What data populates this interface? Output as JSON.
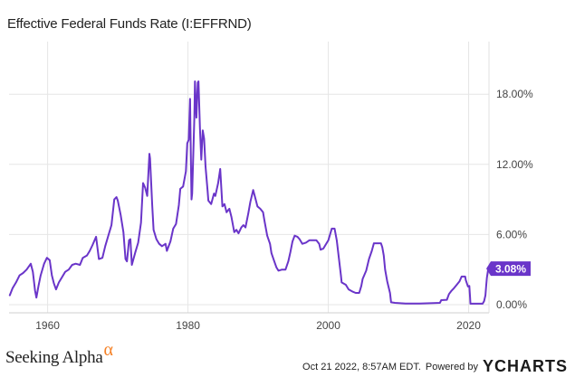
{
  "header": {
    "title": "Effective Federal Funds Rate (I:EFFRND)"
  },
  "footer": {
    "brand": "Seeking Alpha",
    "brand_symbol": "α",
    "timestamp": "Oct 21 2022, 8:57AM EDT.",
    "powered_by": "Powered by",
    "provider_logo_mark": "Y",
    "provider_logo_text": "CHARTS"
  },
  "colors": {
    "line": "#6a35c9",
    "grid": "#e6e6e6",
    "label_bg": "#6a35c9",
    "alpha": "#f58025"
  },
  "chart_data": {
    "type": "line",
    "title": "Effective Federal Funds Rate (I:EFFRND)",
    "xlim": [
      1954.5,
      2022.9
    ],
    "ylim": [
      -0.7,
      22.5
    ],
    "x_ticks": [
      1960,
      1980,
      2000,
      2020
    ],
    "x_tick_labels": [
      "1960",
      "1980",
      "2000",
      "2020"
    ],
    "y_ticks": [
      0,
      6,
      12,
      18
    ],
    "y_tick_labels": [
      "0.00%",
      "6.00%",
      "12.00%",
      "18.00%"
    ],
    "grid": true,
    "last_value_label": "3.08%",
    "last_value": 3.08,
    "series": [
      {
        "values": [
          [
            1954.6,
            0.8
          ],
          [
            1955.0,
            1.4
          ],
          [
            1955.5,
            1.9
          ],
          [
            1956.0,
            2.5
          ],
          [
            1956.5,
            2.7
          ],
          [
            1957.0,
            3.0
          ],
          [
            1957.6,
            3.5
          ],
          [
            1957.9,
            2.8
          ],
          [
            1958.2,
            1.2
          ],
          [
            1958.4,
            0.6
          ],
          [
            1958.7,
            1.6
          ],
          [
            1959.0,
            2.5
          ],
          [
            1959.5,
            3.5
          ],
          [
            1959.9,
            4.0
          ],
          [
            1960.3,
            3.8
          ],
          [
            1960.6,
            2.5
          ],
          [
            1960.9,
            1.8
          ],
          [
            1961.2,
            1.3
          ],
          [
            1961.6,
            1.9
          ],
          [
            1962.0,
            2.3
          ],
          [
            1962.5,
            2.8
          ],
          [
            1963.0,
            3.0
          ],
          [
            1963.5,
            3.4
          ],
          [
            1964.0,
            3.5
          ],
          [
            1964.6,
            3.4
          ],
          [
            1965.0,
            4.0
          ],
          [
            1965.6,
            4.2
          ],
          [
            1966.0,
            4.6
          ],
          [
            1966.4,
            5.1
          ],
          [
            1966.9,
            5.8
          ],
          [
            1967.3,
            3.9
          ],
          [
            1967.8,
            4.0
          ],
          [
            1968.2,
            5.0
          ],
          [
            1968.7,
            6.0
          ],
          [
            1969.1,
            6.8
          ],
          [
            1969.5,
            9.0
          ],
          [
            1969.8,
            9.2
          ],
          [
            1970.0,
            8.9
          ],
          [
            1970.4,
            7.7
          ],
          [
            1970.8,
            6.2
          ],
          [
            1971.1,
            3.9
          ],
          [
            1971.3,
            3.7
          ],
          [
            1971.6,
            5.5
          ],
          [
            1971.8,
            5.6
          ],
          [
            1972.0,
            3.4
          ],
          [
            1972.5,
            4.5
          ],
          [
            1972.9,
            5.3
          ],
          [
            1973.3,
            7.0
          ],
          [
            1973.6,
            10.4
          ],
          [
            1973.9,
            10.0
          ],
          [
            1974.2,
            9.3
          ],
          [
            1974.5,
            12.9
          ],
          [
            1974.6,
            12.5
          ],
          [
            1974.9,
            8.5
          ],
          [
            1975.1,
            6.4
          ],
          [
            1975.5,
            5.6
          ],
          [
            1975.9,
            5.2
          ],
          [
            1976.3,
            5.0
          ],
          [
            1976.8,
            5.2
          ],
          [
            1977.0,
            4.6
          ],
          [
            1977.5,
            5.4
          ],
          [
            1977.9,
            6.5
          ],
          [
            1978.3,
            6.9
          ],
          [
            1978.7,
            8.5
          ],
          [
            1978.9,
            9.9
          ],
          [
            1979.3,
            10.1
          ],
          [
            1979.7,
            11.4
          ],
          [
            1979.9,
            13.8
          ],
          [
            1980.1,
            14.1
          ],
          [
            1980.3,
            17.6
          ],
          [
            1980.4,
            13.0
          ],
          [
            1980.5,
            9.0
          ],
          [
            1980.6,
            9.5
          ],
          [
            1980.9,
            15.9
          ],
          [
            1981.0,
            19.1
          ],
          [
            1981.2,
            16.0
          ],
          [
            1981.4,
            19.0
          ],
          [
            1981.5,
            19.1
          ],
          [
            1981.7,
            15.1
          ],
          [
            1981.9,
            12.4
          ],
          [
            1982.1,
            14.9
          ],
          [
            1982.3,
            14.2
          ],
          [
            1982.5,
            11.8
          ],
          [
            1982.8,
            9.7
          ],
          [
            1982.9,
            8.9
          ],
          [
            1983.3,
            8.6
          ],
          [
            1983.7,
            9.5
          ],
          [
            1983.9,
            9.3
          ],
          [
            1984.3,
            10.4
          ],
          [
            1984.6,
            11.6
          ],
          [
            1984.9,
            8.4
          ],
          [
            1985.2,
            8.6
          ],
          [
            1985.5,
            7.9
          ],
          [
            1985.9,
            8.2
          ],
          [
            1986.2,
            7.5
          ],
          [
            1986.6,
            6.2
          ],
          [
            1986.9,
            6.4
          ],
          [
            1987.2,
            6.1
          ],
          [
            1987.6,
            6.6
          ],
          [
            1987.9,
            6.8
          ],
          [
            1988.2,
            6.6
          ],
          [
            1988.6,
            7.8
          ],
          [
            1988.9,
            8.8
          ],
          [
            1989.3,
            9.8
          ],
          [
            1989.6,
            9.1
          ],
          [
            1989.9,
            8.4
          ],
          [
            1990.3,
            8.2
          ],
          [
            1990.7,
            7.9
          ],
          [
            1990.9,
            7.2
          ],
          [
            1991.3,
            5.9
          ],
          [
            1991.7,
            5.2
          ],
          [
            1991.9,
            4.4
          ],
          [
            1992.3,
            3.7
          ],
          [
            1992.6,
            3.2
          ],
          [
            1992.9,
            2.9
          ],
          [
            1993.4,
            3.0
          ],
          [
            1993.9,
            3.0
          ],
          [
            1994.3,
            3.7
          ],
          [
            1994.6,
            4.5
          ],
          [
            1994.9,
            5.4
          ],
          [
            1995.2,
            5.9
          ],
          [
            1995.6,
            5.8
          ],
          [
            1995.9,
            5.6
          ],
          [
            1996.3,
            5.2
          ],
          [
            1996.8,
            5.3
          ],
          [
            1997.3,
            5.5
          ],
          [
            1997.8,
            5.5
          ],
          [
            1998.3,
            5.5
          ],
          [
            1998.7,
            5.2
          ],
          [
            1998.9,
            4.7
          ],
          [
            1999.3,
            4.8
          ],
          [
            1999.7,
            5.2
          ],
          [
            2000.0,
            5.5
          ],
          [
            2000.5,
            6.5
          ],
          [
            2000.9,
            6.5
          ],
          [
            2001.2,
            5.5
          ],
          [
            2001.5,
            4.0
          ],
          [
            2001.8,
            2.5
          ],
          [
            2001.9,
            1.9
          ],
          [
            2002.5,
            1.7
          ],
          [
            2002.9,
            1.3
          ],
          [
            2003.5,
            1.1
          ],
          [
            2003.9,
            1.0
          ],
          [
            2004.4,
            1.0
          ],
          [
            2004.7,
            1.6
          ],
          [
            2004.9,
            2.2
          ],
          [
            2005.4,
            2.9
          ],
          [
            2005.8,
            3.9
          ],
          [
            2006.2,
            4.6
          ],
          [
            2006.5,
            5.25
          ],
          [
            2007.0,
            5.25
          ],
          [
            2007.5,
            5.25
          ],
          [
            2007.7,
            4.9
          ],
          [
            2007.9,
            4.2
          ],
          [
            2008.1,
            3.0
          ],
          [
            2008.4,
            2.0
          ],
          [
            2008.8,
            1.0
          ],
          [
            2008.95,
            0.2
          ],
          [
            2009.5,
            0.15
          ],
          [
            2011.0,
            0.1
          ],
          [
            2013.0,
            0.1
          ],
          [
            2015.0,
            0.13
          ],
          [
            2015.9,
            0.15
          ],
          [
            2016.1,
            0.38
          ],
          [
            2016.9,
            0.41
          ],
          [
            2017.2,
            0.9
          ],
          [
            2017.5,
            1.15
          ],
          [
            2017.9,
            1.4
          ],
          [
            2018.3,
            1.7
          ],
          [
            2018.7,
            2.0
          ],
          [
            2019.0,
            2.4
          ],
          [
            2019.5,
            2.4
          ],
          [
            2019.6,
            2.1
          ],
          [
            2019.9,
            1.55
          ],
          [
            2020.1,
            1.6
          ],
          [
            2020.2,
            0.65
          ],
          [
            2020.25,
            0.08
          ],
          [
            2021.0,
            0.08
          ],
          [
            2022.0,
            0.08
          ],
          [
            2022.2,
            0.3
          ],
          [
            2022.4,
            0.8
          ],
          [
            2022.5,
            1.6
          ],
          [
            2022.6,
            2.3
          ],
          [
            2022.8,
            3.08
          ]
        ]
      }
    ]
  }
}
